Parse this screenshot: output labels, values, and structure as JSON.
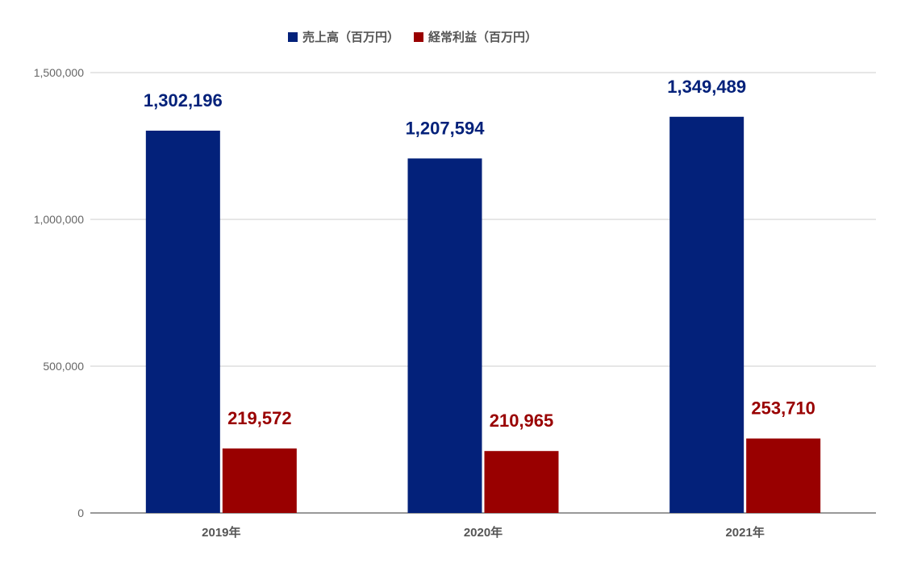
{
  "chart_data": {
    "type": "bar",
    "categories": [
      "2019年",
      "2020年",
      "2021年"
    ],
    "series": [
      {
        "name": "売上高（百万円）",
        "values": [
          1302196,
          1207594,
          1349489
        ],
        "color": "#03217a"
      },
      {
        "name": "経常利益（百万円）",
        "values": [
          219572,
          210965,
          253710
        ],
        "color": "#990000"
      }
    ],
    "data_labels": [
      [
        "1,302,196",
        "1,207,594",
        "1,349,489"
      ],
      [
        "219,572",
        "210,965",
        "253,710"
      ]
    ],
    "ylim": [
      0,
      1500000
    ],
    "yticks": [
      0,
      500000,
      1000000,
      1500000
    ],
    "ytick_labels": [
      "0",
      "500,000",
      "1,000,000",
      "1,500,000"
    ],
    "grid": true,
    "legend_position": "top-center",
    "title": "",
    "xlabel": "",
    "ylabel": ""
  }
}
